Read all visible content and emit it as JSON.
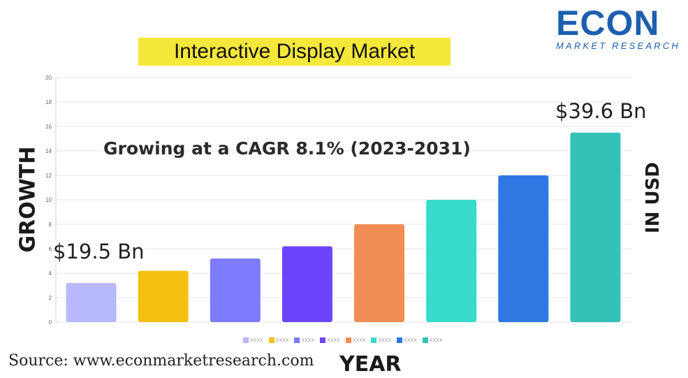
{
  "title": "Interactive Display Market",
  "logo": {
    "word": "ECON",
    "sub": "MARKET RESEARCH"
  },
  "source": "Source: www.econmarketresearch.com",
  "colors": {
    "title_highlight": "#f6e73b",
    "brand": "#1d5fae"
  },
  "chart_data": {
    "type": "bar",
    "subtitle": "Growing at a CAGR 8.1% (2023-2031)",
    "xlabel": "YEAR",
    "ylabel": "GROWTH",
    "ylabel_right": "IN USD",
    "ylim": [
      0,
      20
    ],
    "yticks": [
      "0",
      "2",
      "4",
      "6",
      "8",
      "10",
      "12",
      "14",
      "16",
      "18",
      "20"
    ],
    "grid": true,
    "legend_position": "bottom",
    "categories": [
      "XXXX",
      "XXXX",
      "XXXX",
      "XXXX",
      "XXXX",
      "XXXX",
      "XXXX",
      "XXXX"
    ],
    "values": [
      3.2,
      4.2,
      5.2,
      6.2,
      8.0,
      10.0,
      12.0,
      15.5
    ],
    "colors": [
      "#b8b8fc",
      "#f4c113",
      "#7b7bfb",
      "#6a45fb",
      "#f28d56",
      "#37dbcc",
      "#2f77e2",
      "#34c2b8"
    ],
    "annotations": [
      "$19.5 Bn",
      "$39.6 Bn"
    ]
  }
}
